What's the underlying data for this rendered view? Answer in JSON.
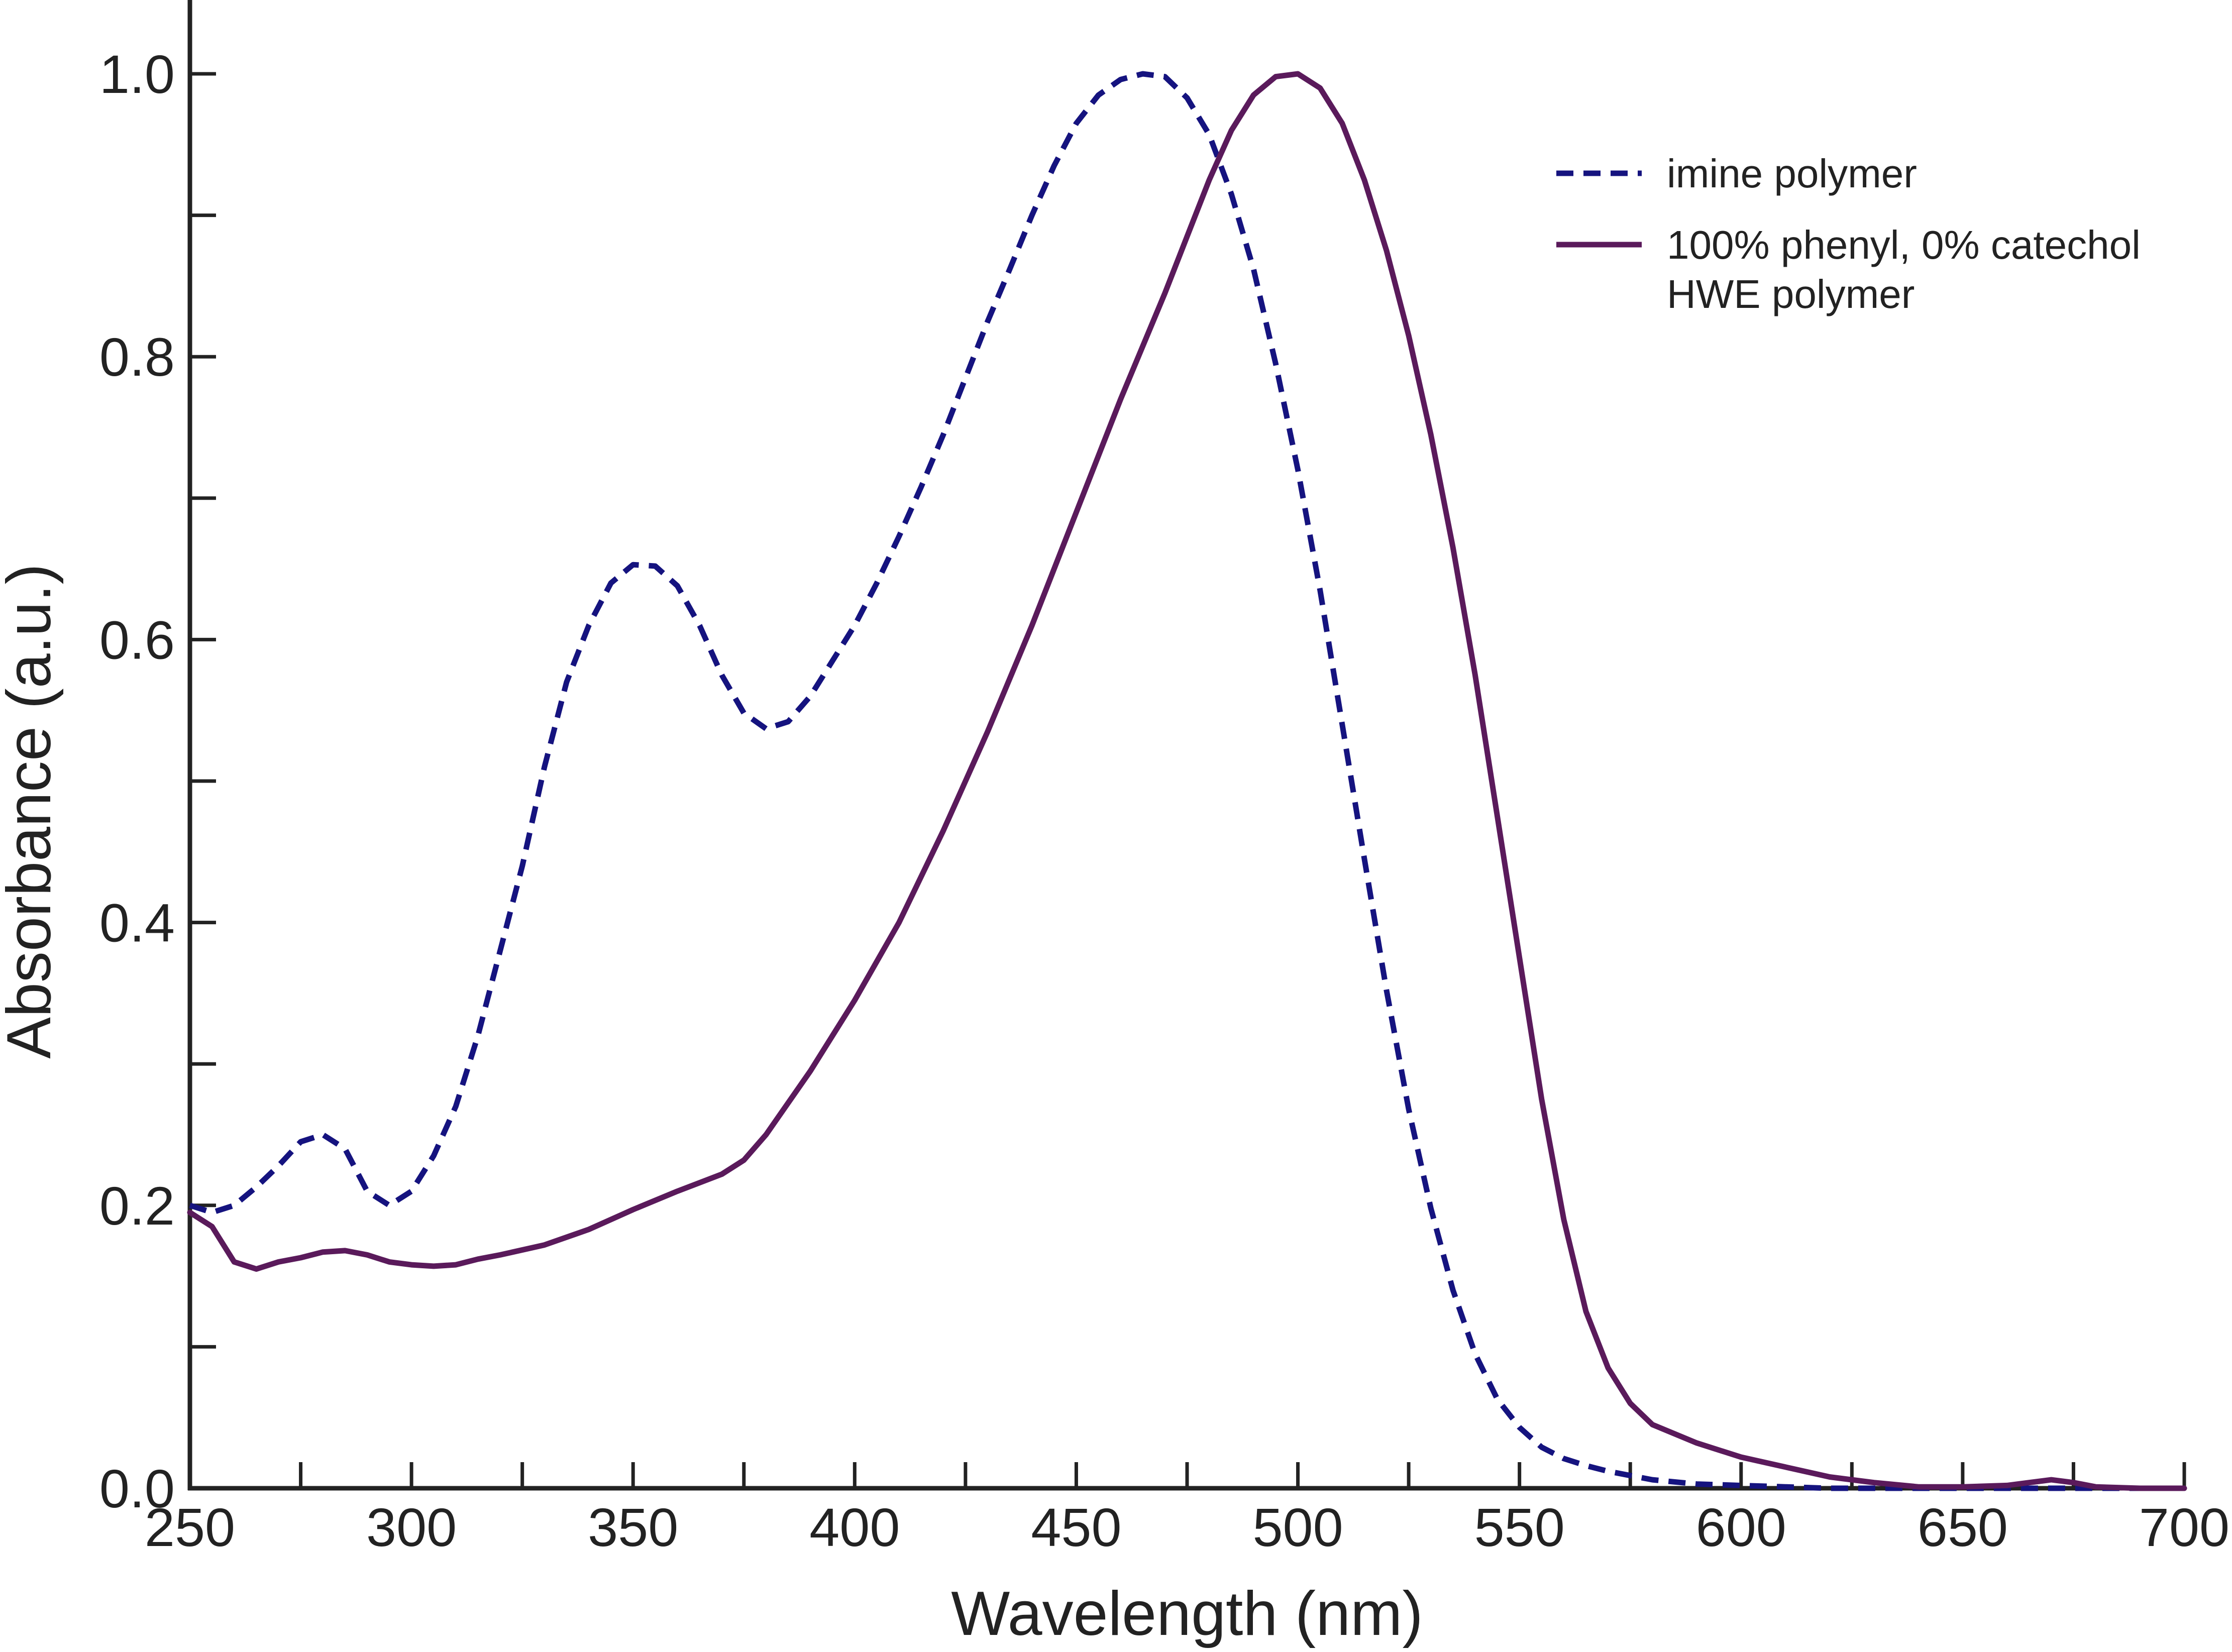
{
  "chart_data": {
    "type": "line",
    "xlabel": "Wavelength (nm)",
    "ylabel": "Absorbance (a.u.)",
    "xlim": [
      250,
      700
    ],
    "ylim": [
      0.0,
      1.0
    ],
    "x_ticks": [
      250,
      300,
      350,
      400,
      450,
      500,
      550,
      600,
      650,
      700
    ],
    "x_tick_labels": [
      "250",
      "300",
      "350",
      "400",
      "450",
      "500",
      "550",
      "600",
      "650",
      "700"
    ],
    "y_ticks": [
      0.0,
      0.2,
      0.4,
      0.6,
      0.8,
      1.0
    ],
    "y_tick_labels": [
      "0.0",
      "0.2",
      "0.4",
      "0.6",
      "0.8",
      "1.0"
    ],
    "x_minor_step": 25,
    "y_minor_step": 0.1,
    "grid": false,
    "legend_position": "top-right",
    "series": [
      {
        "name": "imine polymer",
        "color": "#15137f",
        "style": "dashed",
        "x": [
          250,
          255,
          260,
          265,
          270,
          275,
          280,
          285,
          290,
          295,
          300,
          305,
          310,
          315,
          320,
          325,
          330,
          335,
          340,
          345,
          350,
          355,
          360,
          365,
          370,
          375,
          380,
          385,
          390,
          395,
          400,
          405,
          410,
          415,
          420,
          425,
          430,
          435,
          440,
          445,
          450,
          455,
          460,
          465,
          470,
          475,
          480,
          485,
          490,
          495,
          500,
          505,
          510,
          515,
          520,
          525,
          530,
          535,
          540,
          545,
          550,
          555,
          560,
          565,
          570,
          575,
          580,
          590,
          600,
          610,
          620,
          630,
          650,
          670,
          690,
          700
        ],
        "y": [
          0.2,
          0.195,
          0.2,
          0.213,
          0.228,
          0.245,
          0.25,
          0.24,
          0.21,
          0.2,
          0.21,
          0.235,
          0.27,
          0.32,
          0.38,
          0.44,
          0.51,
          0.57,
          0.61,
          0.64,
          0.653,
          0.652,
          0.638,
          0.61,
          0.575,
          0.548,
          0.537,
          0.542,
          0.56,
          0.585,
          0.61,
          0.64,
          0.673,
          0.708,
          0.745,
          0.785,
          0.825,
          0.862,
          0.9,
          0.935,
          0.965,
          0.985,
          0.996,
          1.0,
          0.998,
          0.983,
          0.957,
          0.915,
          0.862,
          0.795,
          0.72,
          0.635,
          0.54,
          0.445,
          0.352,
          0.268,
          0.198,
          0.14,
          0.095,
          0.063,
          0.043,
          0.029,
          0.021,
          0.016,
          0.012,
          0.009,
          0.006,
          0.003,
          0.002,
          0.001,
          0.0,
          0.0,
          0.0,
          0.0,
          0.0,
          0.0
        ]
      },
      {
        "name": "100% phenyl, 0% catechol HWE polymer",
        "color": "#5a1a5b",
        "style": "solid",
        "x": [
          250,
          255,
          260,
          265,
          270,
          275,
          280,
          285,
          290,
          295,
          300,
          305,
          310,
          315,
          320,
          330,
          340,
          350,
          360,
          370,
          375,
          380,
          390,
          400,
          410,
          420,
          430,
          440,
          450,
          460,
          470,
          475,
          480,
          485,
          490,
          495,
          500,
          505,
          510,
          515,
          520,
          525,
          530,
          535,
          540,
          545,
          550,
          555,
          560,
          565,
          570,
          575,
          580,
          590,
          600,
          610,
          620,
          630,
          640,
          650,
          660,
          665,
          670,
          675,
          680,
          690,
          700
        ],
        "y": [
          0.195,
          0.185,
          0.16,
          0.155,
          0.16,
          0.163,
          0.167,
          0.168,
          0.165,
          0.16,
          0.158,
          0.157,
          0.158,
          0.162,
          0.165,
          0.172,
          0.183,
          0.197,
          0.21,
          0.222,
          0.232,
          0.25,
          0.295,
          0.345,
          0.4,
          0.465,
          0.535,
          0.61,
          0.69,
          0.77,
          0.845,
          0.885,
          0.925,
          0.96,
          0.985,
          0.998,
          1.0,
          0.99,
          0.965,
          0.925,
          0.875,
          0.815,
          0.745,
          0.665,
          0.575,
          0.475,
          0.375,
          0.275,
          0.19,
          0.125,
          0.085,
          0.06,
          0.045,
          0.032,
          0.022,
          0.015,
          0.008,
          0.004,
          0.001,
          0.001,
          0.002,
          0.004,
          0.006,
          0.004,
          0.001,
          0.0,
          0.0
        ]
      }
    ]
  }
}
